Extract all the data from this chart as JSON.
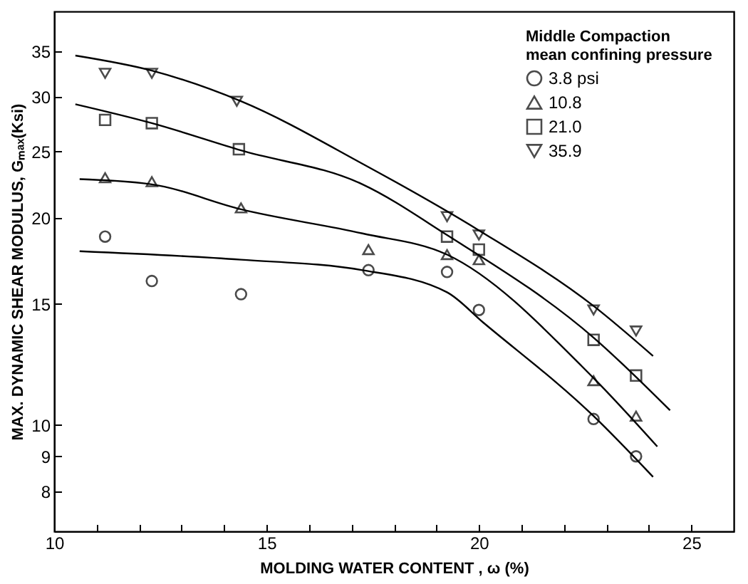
{
  "chart_data": {
    "type": "scatter",
    "xlabel": "MOLDING  WATER  CONTENT ,  ω (%)",
    "ylabel": "MAX. DYNAMIC SHEAR MODULUS,  Gₘₐₓ(Ksi)",
    "legend_title": "Middle  Compaction\nmean  confining pressure",
    "legend": "top right",
    "log": true,
    "grid": false,
    "xlim": [
      10,
      26
    ],
    "xticks": [
      10,
      {
        "value": 11,
        "label": null
      },
      {
        "value": 12,
        "label": null
      },
      {
        "value": 13,
        "label": null
      },
      {
        "value": 14,
        "label": null
      },
      15,
      {
        "value": 16,
        "label": null
      },
      {
        "value": 17,
        "label": null
      },
      {
        "value": 18,
        "label": null
      },
      {
        "value": 19,
        "label": null
      },
      20,
      {
        "value": 21,
        "label": null
      },
      {
        "value": 22,
        "label": null
      },
      {
        "value": 23,
        "label": null
      },
      {
        "value": 24,
        "label": null
      },
      25
    ],
    "ylim": [
      7,
      40
    ],
    "yticks": [
      8,
      9,
      10,
      15,
      20,
      25,
      30,
      35
    ],
    "series": [
      {
        "name": "3.8 psi",
        "type": "scatter",
        "marker": "circle",
        "color": "#000000",
        "x": [
          11.2,
          12.3,
          14.4,
          17.4,
          19.25,
          20.0,
          22.7,
          23.7
        ],
        "values": [
          18.8,
          16.2,
          15.5,
          16.8,
          16.7,
          14.7,
          10.2,
          9.0
        ]
      },
      {
        "name": "10.8",
        "type": "scatter",
        "marker": "triangle",
        "color": "#000000",
        "x": [
          11.2,
          12.3,
          14.4,
          17.4,
          19.25,
          20.0,
          22.7,
          23.7
        ],
        "values": [
          22.9,
          22.6,
          20.7,
          18.0,
          17.7,
          17.4,
          11.6,
          10.3
        ]
      },
      {
        "name": "21.0",
        "type": "scatter",
        "marker": "square",
        "color": "#000000",
        "x": [
          11.2,
          12.3,
          14.35,
          19.25,
          20.0,
          22.7,
          23.7
        ],
        "values": [
          27.8,
          27.5,
          25.2,
          18.8,
          18.0,
          13.3,
          11.8
        ]
      },
      {
        "name": "35.9",
        "type": "scatter",
        "marker": "triangle-down",
        "color": "#000000",
        "x": [
          11.2,
          12.3,
          14.3,
          19.25,
          20.0,
          22.7,
          23.7
        ],
        "values": [
          32.5,
          32.5,
          29.6,
          20.1,
          18.9,
          14.7,
          13.7
        ]
      },
      {
        "type": "line",
        "color": "#000000",
        "line_style": "solid",
        "x": [
          10.6,
          14.4,
          17.26,
          19.25,
          20.1,
          22.7,
          24.1
        ],
        "values": [
          17.9,
          17.4,
          16.8,
          15.6,
          14.1,
          10.3,
          8.4
        ]
      },
      {
        "type": "line",
        "color": "#000000",
        "line_style": "solid",
        "x": [
          10.6,
          12.3,
          14.4,
          17.26,
          19.25,
          22.7,
          24.2
        ],
        "values": [
          22.8,
          22.4,
          20.6,
          19.0,
          17.7,
          11.7,
          9.3
        ]
      },
      {
        "type": "line",
        "color": "#000000",
        "line_style": "solid",
        "x": [
          10.5,
          12.3,
          14.4,
          17.26,
          19.25,
          22.7,
          24.5
        ],
        "values": [
          29.3,
          27.5,
          25.1,
          22.4,
          18.9,
          13.4,
          10.5
        ]
      },
      {
        "type": "line",
        "color": "#000000",
        "line_style": "solid",
        "x": [
          10.5,
          12.3,
          14.4,
          17.26,
          20.0,
          22.7,
          24.1
        ],
        "values": [
          34.5,
          32.8,
          29.6,
          24.0,
          19.2,
          14.9,
          12.6
        ]
      }
    ]
  }
}
